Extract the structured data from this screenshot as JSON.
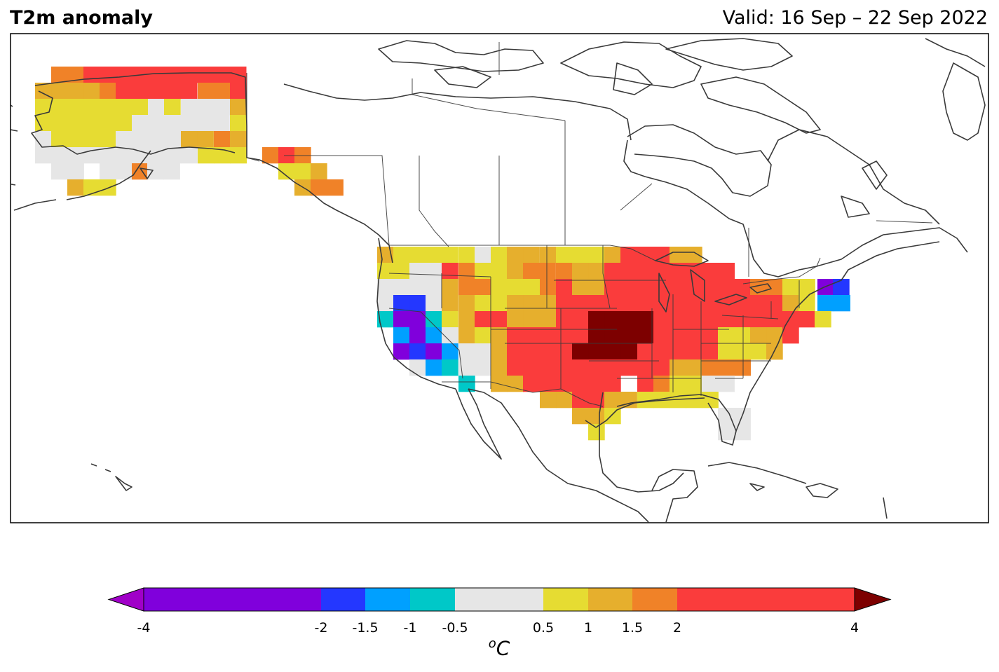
{
  "title_left": "T2m anomaly",
  "title_right": "Valid: 16 Sep – 22 Sep 2022",
  "colorbar": {
    "unit_base": "C",
    "unit_sup": "o",
    "ticks": [
      "-4",
      "-2",
      "-1.5",
      "-1",
      "-0.5",
      "0.5",
      "1",
      "1.5",
      "2",
      "4"
    ],
    "bins": [
      {
        "from": -4,
        "to": -2,
        "color": "#8000dc"
      },
      {
        "from": -2,
        "to": -1.5,
        "color": "#2437ff"
      },
      {
        "from": -1.5,
        "to": -1,
        "color": "#00a0ff"
      },
      {
        "from": -1,
        "to": -0.5,
        "color": "#00c8c8"
      },
      {
        "from": -0.5,
        "to": 0.5,
        "color": "#e6e6e6"
      },
      {
        "from": 0.5,
        "to": 1,
        "color": "#e6dc32"
      },
      {
        "from": 1,
        "to": 1.5,
        "color": "#e6af2d"
      },
      {
        "from": 1.5,
        "to": 2,
        "color": "#f08228"
      },
      {
        "from": 2,
        "to": 4,
        "color": "#fa3c3c"
      }
    ],
    "under_color": "#a000c8",
    "over_color": "#7d0000"
  },
  "anomaly_regions": [
    {
      "region": "Alaska",
      "range": [
        0.5,
        4
      ]
    },
    {
      "region": "Pacific Northwest coast",
      "range": [
        0.5,
        1
      ]
    },
    {
      "region": "California / Great Basin",
      "range": [
        -4,
        -0.5
      ]
    },
    {
      "region": "Central Plains",
      "range": [
        4,
        5
      ]
    },
    {
      "region": "Midwest / Great Lakes",
      "range": [
        2,
        4
      ]
    },
    {
      "region": "Southeast",
      "range": [
        0.5,
        1.5
      ]
    },
    {
      "region": "Florida",
      "range": [
        -0.5,
        0.5
      ]
    },
    {
      "region": "Northern New England",
      "range": [
        -4,
        -1
      ]
    }
  ]
}
